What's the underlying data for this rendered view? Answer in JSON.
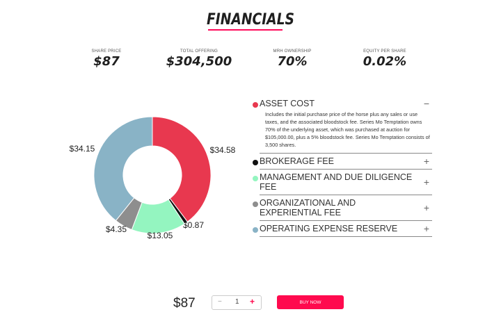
{
  "header": {
    "title": "FINANCIALS"
  },
  "stats": [
    {
      "label": "SHARE PRICE",
      "value": "$87"
    },
    {
      "label": "TOTAL OFFERING",
      "value": "$304,500"
    },
    {
      "label": "MRH OWNERSHIP",
      "value": "70%"
    },
    {
      "label": "EQUITY PER SHARE",
      "value": "0.02%"
    }
  ],
  "chart_data": {
    "type": "pie",
    "donut": true,
    "categories": [
      "ASSET COST",
      "BROKERAGE FEE",
      "MANAGEMENT AND DUE DILIGENCE FEE",
      "ORGANIZATIONAL AND EXPERIENTIAL FEE",
      "OPERATING EXPENSE RESERVE"
    ],
    "values": [
      34.58,
      0.87,
      13.05,
      4.35,
      34.15
    ],
    "data_labels": [
      "$34.58",
      "$0.87",
      "$13.05",
      "$4.35",
      "$34.15"
    ],
    "colors": [
      "#e8384f",
      "#111111",
      "#94f5c0",
      "#8e8e8e",
      "#89b3c6"
    ]
  },
  "accordion": [
    {
      "title": "ASSET COST",
      "expanded": true,
      "sign": "−",
      "color": "#e8384f",
      "description": "Includes the initial purchase price of the horse plus any sales or use taxes, and the associated bloodstock fee. Series Mo Temptation owns 70% of the underlying asset, which was purchased at auction for $105,000.00, plus a 5% bloodstock fee. Series Mo Temptation consists of 3,500 shares."
    },
    {
      "title": "BROKERAGE FEE",
      "expanded": false,
      "sign": "+",
      "color": "#111111"
    },
    {
      "title": "MANAGEMENT AND DUE DILIGENCE FEE",
      "expanded": false,
      "sign": "+",
      "color": "#94f5c0"
    },
    {
      "title": "ORGANIZATIONAL AND EXPERIENTIAL FEE",
      "expanded": false,
      "sign": "+",
      "color": "#8e8e8e"
    },
    {
      "title": "OPERATING EXPENSE RESERVE",
      "expanded": false,
      "sign": "+",
      "color": "#89b3c6"
    }
  ],
  "purchase": {
    "price": "$87",
    "minus": "−",
    "quantity": "1",
    "plus": "+",
    "buy_label": "BUY NOW"
  },
  "accent": "#ff0a4e"
}
